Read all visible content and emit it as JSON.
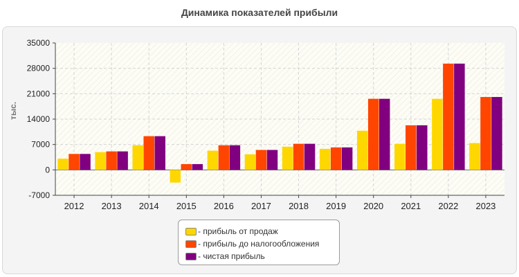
{
  "chart_data": {
    "type": "bar",
    "title": "Динамика показателей прибыли",
    "ylabel": "тыс.",
    "xlabel": "",
    "ylim": [
      -7000,
      35000
    ],
    "yticks": [
      "35000",
      "28000",
      "21000",
      "14000",
      "7000",
      "0",
      "-7000"
    ],
    "ytick_values": [
      35000,
      28000,
      21000,
      14000,
      7000,
      0,
      -7000
    ],
    "grid": true,
    "legend_position": "bottom",
    "categories": [
      "2012",
      "2013",
      "2014",
      "2015",
      "2016",
      "2017",
      "2018",
      "2019",
      "2020",
      "2021",
      "2022",
      "2023"
    ],
    "series": [
      {
        "name": "- прибыль от продаж",
        "color": "#ffd700",
        "values": [
          3100,
          4900,
          6800,
          -3500,
          5300,
          4300,
          6400,
          5800,
          10800,
          7200,
          19600,
          7400
        ]
      },
      {
        "name": "- прибыль до налогообложения",
        "color": "#ff4500",
        "values": [
          4400,
          5100,
          9300,
          1600,
          6800,
          5500,
          7200,
          6200,
          19600,
          12300,
          29300,
          20100
        ]
      },
      {
        "name": "- чистая прибыль",
        "color": "#800080",
        "values": [
          4400,
          5100,
          9300,
          1600,
          6800,
          5500,
          7200,
          6200,
          19600,
          12300,
          29300,
          20100
        ]
      }
    ]
  }
}
